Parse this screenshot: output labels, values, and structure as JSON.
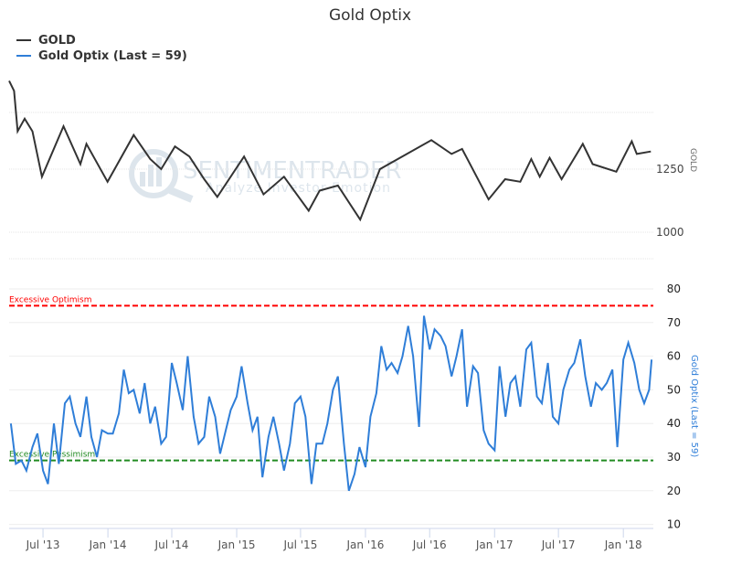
{
  "chart_data": {
    "type": "line",
    "title": "Gold Optix",
    "legend": {
      "placement": "top-left",
      "entries": [
        "GOLD",
        "Gold Optix (Last = 59)"
      ]
    },
    "watermark": {
      "text": "SENTIMENTRADER",
      "subtext": "Analyze Investor Emotion"
    },
    "x_ticks": [
      "Jul '13",
      "Jan '14",
      "Jul '14",
      "Jan '15",
      "Jul '15",
      "Jan '16",
      "Jul '16",
      "Jan '17",
      "Jul '17",
      "Jan '18"
    ],
    "x_tick_dates": [
      "2013-07-01",
      "2014-01-01",
      "2014-07-01",
      "2015-01-01",
      "2015-07-01",
      "2016-01-01",
      "2016-07-01",
      "2017-01-01",
      "2017-07-01",
      "2018-01-01"
    ],
    "xlim": [
      "2013-03-27",
      "2018-03-27"
    ],
    "grid": true,
    "panels": [
      {
        "name": "GOLD",
        "axis_label": "GOLD",
        "color": "#333333",
        "y_ticks": [
          1000,
          1250
        ],
        "ylim": [
          880,
          1610
        ],
        "points": [
          [
            "2013-03-27",
            1600
          ],
          [
            "2013-04-10",
            1560
          ],
          [
            "2013-04-20",
            1400
          ],
          [
            "2013-05-10",
            1450
          ],
          [
            "2013-06-01",
            1400
          ],
          [
            "2013-06-28",
            1220
          ],
          [
            "2013-08-28",
            1420
          ],
          [
            "2013-10-15",
            1270
          ],
          [
            "2013-11-01",
            1350
          ],
          [
            "2013-12-31",
            1200
          ],
          [
            "2014-03-15",
            1385
          ],
          [
            "2014-05-01",
            1290
          ],
          [
            "2014-06-01",
            1250
          ],
          [
            "2014-07-10",
            1340
          ],
          [
            "2014-08-20",
            1300
          ],
          [
            "2014-10-01",
            1210
          ],
          [
            "2014-11-07",
            1140
          ],
          [
            "2015-01-22",
            1300
          ],
          [
            "2015-03-18",
            1150
          ],
          [
            "2015-05-15",
            1220
          ],
          [
            "2015-07-24",
            1085
          ],
          [
            "2015-08-24",
            1165
          ],
          [
            "2015-10-15",
            1185
          ],
          [
            "2015-12-17",
            1050
          ],
          [
            "2016-02-11",
            1250
          ],
          [
            "2016-07-06",
            1365
          ],
          [
            "2016-09-01",
            1310
          ],
          [
            "2016-10-01",
            1330
          ],
          [
            "2016-12-15",
            1130
          ],
          [
            "2017-01-31",
            1210
          ],
          [
            "2017-03-15",
            1200
          ],
          [
            "2017-04-15",
            1290
          ],
          [
            "2017-05-09",
            1220
          ],
          [
            "2017-06-06",
            1295
          ],
          [
            "2017-07-10",
            1210
          ],
          [
            "2017-09-08",
            1350
          ],
          [
            "2017-10-06",
            1270
          ],
          [
            "2017-12-12",
            1240
          ],
          [
            "2018-01-25",
            1360
          ],
          [
            "2018-02-08",
            1310
          ],
          [
            "2018-03-20",
            1320
          ]
        ]
      },
      {
        "name": "Gold Optix (Last = 59)",
        "axis_label": "Gold Optix (Last = 59)",
        "color": "#2f7ed8",
        "y_ticks": [
          10,
          20,
          30,
          40,
          50,
          60,
          70,
          80
        ],
        "ylim": [
          8,
          82
        ],
        "last": 59,
        "reference_lines": [
          {
            "label": "Excessive Optimism",
            "value": 75,
            "color": "#ff0000"
          },
          {
            "label": "Excessive Pessimism",
            "value": 29,
            "color": "#228b22"
          }
        ],
        "points": [
          [
            "2013-04-01",
            40
          ],
          [
            "2013-04-15",
            28
          ],
          [
            "2013-05-01",
            29
          ],
          [
            "2013-05-15",
            26
          ],
          [
            "2013-06-01",
            33
          ],
          [
            "2013-06-15",
            37
          ],
          [
            "2013-07-01",
            26
          ],
          [
            "2013-07-15",
            22
          ],
          [
            "2013-08-01",
            40
          ],
          [
            "2013-08-15",
            28
          ],
          [
            "2013-09-01",
            46
          ],
          [
            "2013-09-15",
            48
          ],
          [
            "2013-10-01",
            40
          ],
          [
            "2013-10-15",
            36
          ],
          [
            "2013-11-01",
            48
          ],
          [
            "2013-11-15",
            36
          ],
          [
            "2013-12-01",
            30
          ],
          [
            "2013-12-15",
            38
          ],
          [
            "2014-01-01",
            37
          ],
          [
            "2014-01-15",
            37
          ],
          [
            "2014-02-01",
            43
          ],
          [
            "2014-02-15",
            56
          ],
          [
            "2014-03-01",
            49
          ],
          [
            "2014-03-15",
            50
          ],
          [
            "2014-04-01",
            43
          ],
          [
            "2014-04-15",
            52
          ],
          [
            "2014-05-01",
            40
          ],
          [
            "2014-05-15",
            45
          ],
          [
            "2014-06-01",
            34
          ],
          [
            "2014-06-15",
            36
          ],
          [
            "2014-07-01",
            58
          ],
          [
            "2014-07-15",
            52
          ],
          [
            "2014-08-01",
            44
          ],
          [
            "2014-08-15",
            60
          ],
          [
            "2014-09-01",
            42
          ],
          [
            "2014-09-15",
            34
          ],
          [
            "2014-10-01",
            36
          ],
          [
            "2014-10-15",
            48
          ],
          [
            "2014-11-01",
            42
          ],
          [
            "2014-11-15",
            31
          ],
          [
            "2014-12-01",
            38
          ],
          [
            "2014-12-15",
            44
          ],
          [
            "2015-01-01",
            48
          ],
          [
            "2015-01-15",
            57
          ],
          [
            "2015-02-01",
            46
          ],
          [
            "2015-02-15",
            38
          ],
          [
            "2015-03-01",
            42
          ],
          [
            "2015-03-15",
            24
          ],
          [
            "2015-04-01",
            36
          ],
          [
            "2015-04-15",
            42
          ],
          [
            "2015-05-01",
            34
          ],
          [
            "2015-05-15",
            26
          ],
          [
            "2015-06-01",
            34
          ],
          [
            "2015-06-15",
            46
          ],
          [
            "2015-07-01",
            48
          ],
          [
            "2015-07-15",
            42
          ],
          [
            "2015-08-01",
            22
          ],
          [
            "2015-08-15",
            34
          ],
          [
            "2015-09-01",
            34
          ],
          [
            "2015-09-15",
            40
          ],
          [
            "2015-10-01",
            50
          ],
          [
            "2015-10-15",
            54
          ],
          [
            "2015-11-01",
            34
          ],
          [
            "2015-11-15",
            20
          ],
          [
            "2015-12-01",
            25
          ],
          [
            "2015-12-15",
            33
          ],
          [
            "2016-01-01",
            27
          ],
          [
            "2016-01-15",
            42
          ],
          [
            "2016-02-01",
            49
          ],
          [
            "2016-02-15",
            63
          ],
          [
            "2016-03-01",
            56
          ],
          [
            "2016-03-15",
            58
          ],
          [
            "2016-04-01",
            55
          ],
          [
            "2016-04-15",
            60
          ],
          [
            "2016-05-01",
            69
          ],
          [
            "2016-05-15",
            60
          ],
          [
            "2016-06-01",
            39
          ],
          [
            "2016-06-15",
            72
          ],
          [
            "2016-07-01",
            62
          ],
          [
            "2016-07-15",
            68
          ],
          [
            "2016-08-01",
            66
          ],
          [
            "2016-08-15",
            63
          ],
          [
            "2016-09-01",
            54
          ],
          [
            "2016-09-15",
            60
          ],
          [
            "2016-10-01",
            68
          ],
          [
            "2016-10-15",
            45
          ],
          [
            "2016-11-01",
            57
          ],
          [
            "2016-11-15",
            55
          ],
          [
            "2016-12-01",
            38
          ],
          [
            "2016-12-15",
            34
          ],
          [
            "2017-01-01",
            32
          ],
          [
            "2017-01-15",
            57
          ],
          [
            "2017-02-01",
            42
          ],
          [
            "2017-02-15",
            52
          ],
          [
            "2017-03-01",
            54
          ],
          [
            "2017-03-15",
            45
          ],
          [
            "2017-04-01",
            62
          ],
          [
            "2017-04-15",
            64
          ],
          [
            "2017-05-01",
            48
          ],
          [
            "2017-05-15",
            46
          ],
          [
            "2017-06-01",
            58
          ],
          [
            "2017-06-15",
            42
          ],
          [
            "2017-07-01",
            40
          ],
          [
            "2017-07-15",
            50
          ],
          [
            "2017-08-01",
            56
          ],
          [
            "2017-08-15",
            58
          ],
          [
            "2017-09-01",
            65
          ],
          [
            "2017-09-15",
            54
          ],
          [
            "2017-10-01",
            45
          ],
          [
            "2017-10-15",
            52
          ],
          [
            "2017-11-01",
            50
          ],
          [
            "2017-11-15",
            52
          ],
          [
            "2017-12-01",
            56
          ],
          [
            "2017-12-15",
            33
          ],
          [
            "2018-01-01",
            59
          ],
          [
            "2018-01-15",
            64
          ],
          [
            "2018-02-01",
            58
          ],
          [
            "2018-02-15",
            50
          ],
          [
            "2018-03-01",
            46
          ],
          [
            "2018-03-15",
            50
          ],
          [
            "2018-03-22",
            59
          ]
        ]
      }
    ]
  }
}
